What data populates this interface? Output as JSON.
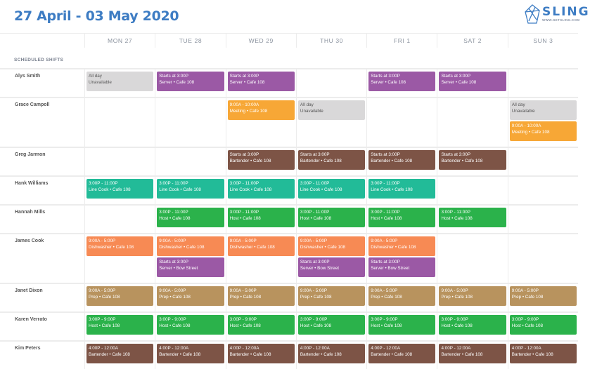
{
  "header": {
    "title": "27 April - 03 May 2020",
    "logo_word": "SLING",
    "logo_url": "WWW.GETSLING.COM"
  },
  "days": [
    "MON 27",
    "TUE 28",
    "WED 29",
    "THU 30",
    "FRI 1",
    "SAT 2",
    "SUN 3"
  ],
  "section_label": "SCHEDULED SHIFTS",
  "colors": {
    "unavailable": "#d9d8d9",
    "server": "#9b59a5",
    "meeting": "#f7a736",
    "bartender": "#7d5446",
    "linecook": "#22bb98",
    "host": "#2bb24b",
    "dishwasher": "#f78a54",
    "prep": "#b8935e"
  },
  "employees": [
    {
      "name": "Alys Smith",
      "cells": [
        [
          {
            "l1": "All day",
            "l2": "Unavailable",
            "type": "unavailable"
          }
        ],
        [
          {
            "l1": "Starts at 3:00P",
            "l2": "Server • Cafe 108",
            "type": "server"
          }
        ],
        [
          {
            "l1": "Starts at 3:00P",
            "l2": "Server • Cafe 108",
            "type": "server"
          }
        ],
        [],
        [
          {
            "l1": "Starts at 3:00P",
            "l2": "Server • Cafe 108",
            "type": "server"
          }
        ],
        [
          {
            "l1": "Starts at 3:00P",
            "l2": "Server • Cafe 108",
            "type": "server"
          }
        ],
        []
      ]
    },
    {
      "name": "Grace Campoll",
      "cells": [
        [],
        [],
        [
          {
            "l1": "9:00A - 10:00A",
            "l2": "Meeting • Cafe 108",
            "type": "meeting"
          }
        ],
        [
          {
            "l1": "All day",
            "l2": "Unavailable",
            "type": "unavailable"
          }
        ],
        [],
        [],
        [
          {
            "l1": "All day",
            "l2": "Unavailable",
            "type": "unavailable"
          },
          {
            "l1": "9:00A - 10:00A",
            "l2": "Meeting • Cafe 108",
            "type": "meeting"
          }
        ]
      ]
    },
    {
      "name": "Greg Jarmon",
      "cells": [
        [],
        [],
        [
          {
            "l1": "Starts at 3:00P",
            "l2": "Bartender • Cafe 108",
            "type": "bartender"
          }
        ],
        [
          {
            "l1": "Starts at 3:00P",
            "l2": "Bartender • Cafe 108",
            "type": "bartender"
          }
        ],
        [
          {
            "l1": "Starts at 3:00P",
            "l2": "Bartender • Cafe 108",
            "type": "bartender"
          }
        ],
        [
          {
            "l1": "Starts at 3:00P",
            "l2": "Bartender • Cafe 108",
            "type": "bartender"
          }
        ],
        []
      ]
    },
    {
      "name": "Hank Williams",
      "cells": [
        [
          {
            "l1": "3:00P - 11:00P",
            "l2": "Line Cook • Cafe 108",
            "type": "linecook"
          }
        ],
        [
          {
            "l1": "3:00P - 11:00P",
            "l2": "Line Cook • Cafe 108",
            "type": "linecook"
          }
        ],
        [
          {
            "l1": "3:00P - 11:00P",
            "l2": "Line Cook • Cafe 108",
            "type": "linecook"
          }
        ],
        [
          {
            "l1": "3:00P - 11:00P",
            "l2": "Line Cook • Cafe 108",
            "type": "linecook"
          }
        ],
        [
          {
            "l1": "3:00P - 11:00P",
            "l2": "Line Cook • Cafe 108",
            "type": "linecook"
          }
        ],
        [],
        []
      ]
    },
    {
      "name": "Hannah Mills",
      "cells": [
        [],
        [
          {
            "l1": "3:00P - 11:00P",
            "l2": "Host • Cafe 108",
            "type": "host"
          }
        ],
        [
          {
            "l1": "3:00P - 11:00P",
            "l2": "Host • Cafe 108",
            "type": "host"
          }
        ],
        [
          {
            "l1": "3:00P - 11:00P",
            "l2": "Host • Cafe 108",
            "type": "host"
          }
        ],
        [
          {
            "l1": "3:00P - 11:00P",
            "l2": "Host • Cafe 108",
            "type": "host"
          }
        ],
        [
          {
            "l1": "3:00P - 11:00P",
            "l2": "Host • Cafe 108",
            "type": "host"
          }
        ],
        []
      ]
    },
    {
      "name": "James Cook",
      "cells": [
        [
          {
            "l1": "9:00A - 5:00P",
            "l2": "Dishwasher • Cafe 108",
            "type": "dishwasher"
          }
        ],
        [
          {
            "l1": "9:00A - 5:00P",
            "l2": "Dishwasher • Cafe 108",
            "type": "dishwasher"
          },
          {
            "l1": "Starts at 3:00P",
            "l2": "Server • Bow Street",
            "type": "server"
          }
        ],
        [
          {
            "l1": "9:00A - 5:00P",
            "l2": "Dishwasher • Cafe 108",
            "type": "dishwasher"
          }
        ],
        [
          {
            "l1": "9:00A - 5:00P",
            "l2": "Dishwasher • Cafe 108",
            "type": "dishwasher"
          },
          {
            "l1": "Starts at 3:00P",
            "l2": "Server • Bow Street",
            "type": "server"
          }
        ],
        [
          {
            "l1": "9:00A - 5:00P",
            "l2": "Dishwasher • Cafe 108",
            "type": "dishwasher"
          },
          {
            "l1": "Starts at 3:00P",
            "l2": "Server • Bow Street",
            "type": "server"
          }
        ],
        [],
        []
      ]
    },
    {
      "name": "Janet Dixon",
      "cells": [
        [
          {
            "l1": "9:00A - 5:00P",
            "l2": "Prep • Cafe 108",
            "type": "prep"
          }
        ],
        [
          {
            "l1": "9:00A - 5:00P",
            "l2": "Prep • Cafe 108",
            "type": "prep"
          }
        ],
        [
          {
            "l1": "9:00A - 5:00P",
            "l2": "Prep • Cafe 108",
            "type": "prep"
          }
        ],
        [
          {
            "l1": "9:00A - 5:00P",
            "l2": "Prep • Cafe 108",
            "type": "prep"
          }
        ],
        [
          {
            "l1": "9:00A - 5:00P",
            "l2": "Prep • Cafe 108",
            "type": "prep"
          }
        ],
        [
          {
            "l1": "9:00A - 5:00P",
            "l2": "Prep • Cafe 108",
            "type": "prep"
          }
        ],
        [
          {
            "l1": "9:00A - 5:00P",
            "l2": "Prep • Cafe 108",
            "type": "prep"
          }
        ]
      ]
    },
    {
      "name": "Karen Verrato",
      "cells": [
        [
          {
            "l1": "3:00P - 9:00P",
            "l2": "Host • Cafe 108",
            "type": "host"
          }
        ],
        [
          {
            "l1": "3:00P - 9:00P",
            "l2": "Host • Cafe 108",
            "type": "host"
          }
        ],
        [
          {
            "l1": "3:00P - 9:00P",
            "l2": "Host • Cafe 108",
            "type": "host"
          }
        ],
        [
          {
            "l1": "3:00P - 9:00P",
            "l2": "Host • Cafe 108",
            "type": "host"
          }
        ],
        [
          {
            "l1": "3:00P - 9:00P",
            "l2": "Host • Cafe 108",
            "type": "host"
          }
        ],
        [
          {
            "l1": "3:00P - 9:00P",
            "l2": "Host • Cafe 108",
            "type": "host"
          }
        ],
        [
          {
            "l1": "3:00P - 9:00P",
            "l2": "Host • Cafe 108",
            "type": "host"
          }
        ]
      ]
    },
    {
      "name": "Kim Peters",
      "cells": [
        [
          {
            "l1": "4:00P - 12:00A",
            "l2": "Bartender • Cafe 108",
            "type": "bartender"
          }
        ],
        [
          {
            "l1": "4:00P - 12:00A",
            "l2": "Bartender • Cafe 108",
            "type": "bartender"
          }
        ],
        [
          {
            "l1": "4:00P - 12:00A",
            "l2": "Bartender • Cafe 108",
            "type": "bartender"
          }
        ],
        [
          {
            "l1": "4:00P - 12:00A",
            "l2": "Bartender • Cafe 108",
            "type": "bartender"
          }
        ],
        [
          {
            "l1": "4:00P - 12:00A",
            "l2": "Bartender • Cafe 108",
            "type": "bartender"
          }
        ],
        [
          {
            "l1": "4:00P - 12:00A",
            "l2": "Bartender • Cafe 108",
            "type": "bartender"
          }
        ],
        [
          {
            "l1": "4:00P - 12:00A",
            "l2": "Bartender • Cafe 108",
            "type": "bartender"
          }
        ]
      ]
    }
  ]
}
